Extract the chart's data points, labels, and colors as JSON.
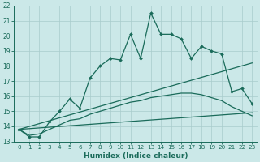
{
  "xlabel": "Humidex (Indice chaleur)",
  "bg_color": "#cbe8e8",
  "grid_color": "#a8cccc",
  "line_color": "#1a6b5a",
  "xlim": [
    -0.5,
    23.5
  ],
  "ylim": [
    13,
    22
  ],
  "yticks": [
    13,
    14,
    15,
    16,
    17,
    18,
    19,
    20,
    21,
    22
  ],
  "xticks": [
    0,
    1,
    2,
    3,
    4,
    5,
    6,
    7,
    8,
    9,
    10,
    11,
    12,
    13,
    14,
    15,
    16,
    17,
    18,
    19,
    20,
    21,
    22,
    23
  ],
  "main_x": [
    0,
    1,
    2,
    3,
    4,
    5,
    6,
    7,
    8,
    9,
    10,
    11,
    12,
    13,
    14,
    15,
    16,
    17,
    18,
    19,
    20,
    21,
    22,
    23
  ],
  "main_y": [
    13.8,
    13.3,
    13.3,
    14.3,
    15.0,
    15.8,
    15.2,
    17.2,
    18.0,
    18.5,
    18.4,
    20.1,
    18.5,
    21.5,
    20.1,
    20.1,
    19.8,
    18.5,
    19.3,
    19.0,
    18.8,
    16.3,
    16.5,
    15.5
  ],
  "smooth_x": [
    0,
    1,
    2,
    3,
    4,
    5,
    6,
    7,
    8,
    9,
    10,
    11,
    12,
    13,
    14,
    15,
    16,
    17,
    18,
    19,
    20,
    21,
    22,
    23
  ],
  "smooth_y": [
    13.8,
    13.4,
    13.5,
    13.8,
    14.1,
    14.4,
    14.5,
    14.8,
    15.0,
    15.2,
    15.4,
    15.6,
    15.7,
    15.9,
    16.0,
    16.1,
    16.2,
    16.2,
    16.1,
    15.9,
    15.7,
    15.3,
    15.0,
    14.7
  ],
  "line1_x": [
    0,
    23
  ],
  "line1_y": [
    13.8,
    18.2
  ],
  "line2_x": [
    0,
    23
  ],
  "line2_y": [
    13.8,
    14.9
  ]
}
